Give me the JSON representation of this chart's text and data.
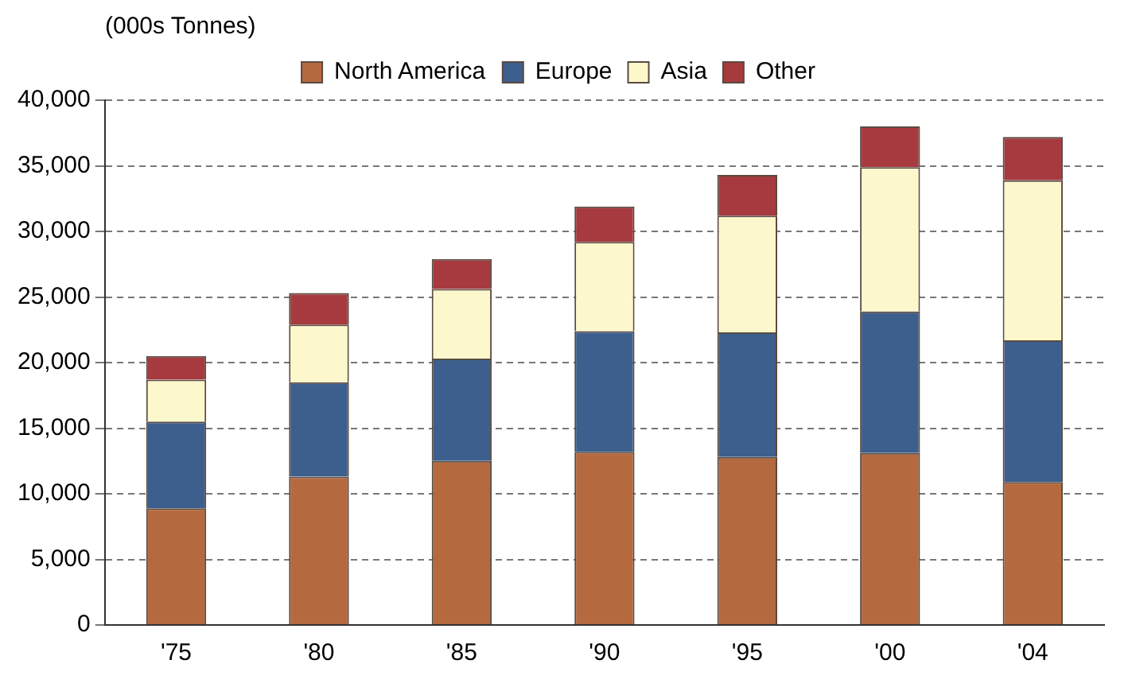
{
  "chart_data": {
    "type": "bar",
    "stacked": true,
    "ylabel": "(000s Tonnes)",
    "categories": [
      "'75",
      "'80",
      "'85",
      "'90",
      "'95",
      "'00",
      "'04"
    ],
    "series": [
      {
        "name": "North America",
        "color": "#b5693f",
        "values": [
          8900,
          11300,
          12500,
          13200,
          12800,
          13100,
          10900
        ]
      },
      {
        "name": "Europe",
        "color": "#3d5f8e",
        "values": [
          6600,
          7200,
          7800,
          9200,
          9500,
          10800,
          10800
        ]
      },
      {
        "name": "Asia",
        "color": "#fdf8cc",
        "values": [
          3200,
          4400,
          5300,
          6800,
          8900,
          11000,
          12200
        ]
      },
      {
        "name": "Other",
        "color": "#a63a3f",
        "values": [
          1800,
          2400,
          2300,
          2700,
          3100,
          3100,
          3300
        ]
      }
    ],
    "ylim": [
      0,
      40000
    ],
    "yticks": [
      0,
      {
        "value": 5000,
        "label": "5,000"
      },
      {
        "value": 10000,
        "label": "10,000"
      },
      {
        "value": 15000,
        "label": "15,000"
      },
      {
        "value": 20000,
        "label": "20,000"
      },
      {
        "value": 25000,
        "label": "25,000"
      },
      {
        "value": 30000,
        "label": "30,000"
      },
      {
        "value": 35000,
        "label": "35,000"
      },
      {
        "value": 40000,
        "label": "40,000"
      }
    ],
    "grid": "y",
    "legend": "top"
  }
}
